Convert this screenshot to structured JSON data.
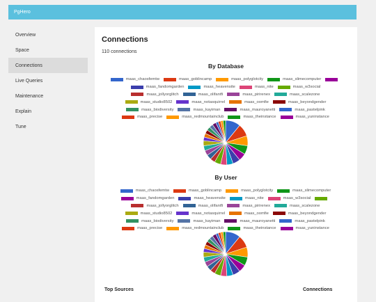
{
  "app": {
    "title": "PgHero"
  },
  "sidebar": {
    "items": [
      {
        "label": "Overview",
        "active": false
      },
      {
        "label": "Space",
        "active": false
      },
      {
        "label": "Connections",
        "active": true
      },
      {
        "label": "Live Queries",
        "active": false
      },
      {
        "label": "Maintenance",
        "active": false
      },
      {
        "label": "Explain",
        "active": false
      },
      {
        "label": "Tune",
        "active": false
      }
    ]
  },
  "page": {
    "title": "Connections",
    "connection_count": "110 connections",
    "top_sources_label": "Top Sources",
    "connections_label": "Connections"
  },
  "colors": [
    "#3366cc",
    "#dc3912",
    "#ff9900",
    "#109618",
    "#990099",
    "#3b3eac",
    "#0099c6",
    "#dd4477",
    "#66aa00",
    "#b82e2e",
    "#316395",
    "#994499",
    "#22aa99",
    "#aaaa11",
    "#6633cc",
    "#e67300",
    "#8b0707",
    "#329262",
    "#5574a6",
    "#651067"
  ],
  "chart_data": [
    {
      "type": "pie",
      "title": "By Database",
      "legend": [
        [
          "maas_chaosfemtw",
          "maas_goblincamp",
          "maas_polyglotcity",
          "maas_slimecomputer",
          ""
        ],
        [
          "maas_fandomgarden",
          "maas_heavensite",
          "maas_nite",
          "maas_w3social"
        ],
        [
          "maas_jollyorglitch",
          "maas_olifantfi",
          "maas_pirirenex",
          "maas_scalezone"
        ],
        [
          "maas_studio8502",
          "maas_notasquirrel",
          "maas_oomfie",
          "maas_beyondgender"
        ],
        [
          "maas_biodiversity",
          "maas_kayiman",
          "maas_mauroyanetti",
          "maas_pastelpink"
        ],
        [
          "maas_precise",
          "maas_redmountainclub",
          "maas_theinstance",
          "maas_yuninstance"
        ]
      ],
      "slices": [
        12,
        10,
        8,
        7,
        6,
        6,
        5,
        5,
        5,
        4,
        4,
        4,
        4,
        4,
        3,
        3,
        3,
        3,
        3,
        3,
        2,
        2,
        2,
        2
      ]
    },
    {
      "type": "pie",
      "title": "By User",
      "legend": [
        [
          "maas_chaosfemtw",
          "maas_goblincamp",
          "maas_polyglotcity",
          "maas_slimecomputer"
        ],
        [
          "maas_fandomgarden",
          "maas_heavensite",
          "maas_nite",
          "maas_w3social",
          ""
        ],
        [
          "maas_jollyorglitch",
          "maas_olifantfi",
          "maas_pirirenex",
          "maas_scalezone"
        ],
        [
          "maas_studio8502",
          "maas_notasquirrel",
          "maas_oomfie",
          "maas_beyondgender"
        ],
        [
          "maas_biodiversity",
          "maas_kayiman",
          "maas_mauroyanetti",
          "maas_pastelpink"
        ],
        [
          "maas_precise",
          "maas_redmountainclub",
          "maas_theinstance",
          "maas_yuninstance"
        ]
      ],
      "slices": [
        12,
        10,
        8,
        7,
        6,
        6,
        5,
        5,
        5,
        4,
        4,
        4,
        4,
        4,
        3,
        3,
        3,
        3,
        3,
        3,
        2,
        2,
        2,
        2
      ]
    }
  ]
}
